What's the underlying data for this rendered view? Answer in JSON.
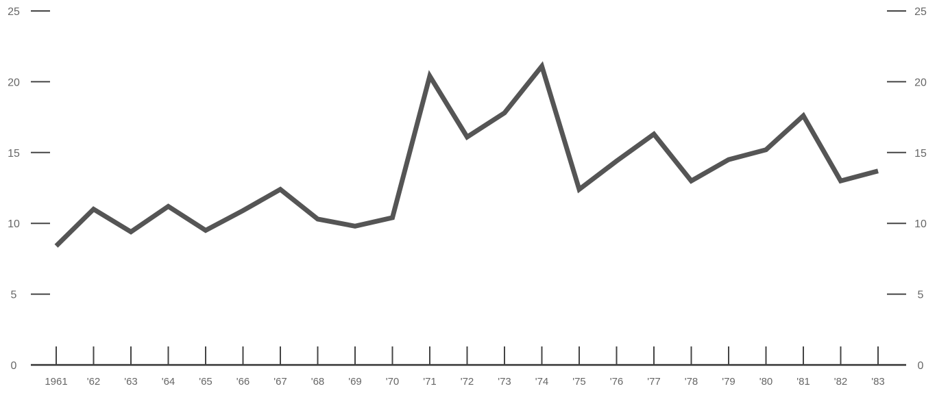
{
  "chart_data": {
    "type": "line",
    "title": "",
    "xlabel": "",
    "ylabel": "",
    "categories": [
      "1961",
      "'62",
      "'63",
      "'64",
      "'65",
      "'66",
      "'67",
      "'68",
      "'69",
      "'70",
      "'71",
      "'72",
      "'73",
      "'74",
      "'75",
      "'76",
      "'77",
      "'78",
      "'79",
      "'80",
      "'81",
      "'82",
      "'83"
    ],
    "series": [
      {
        "values": [
          8.4,
          11.0,
          9.4,
          11.2,
          9.5,
          10.9,
          12.4,
          10.3,
          9.8,
          10.4,
          20.4,
          16.1,
          17.8,
          21.1,
          12.4,
          14.4,
          16.3,
          13.0,
          14.5,
          15.2,
          17.6,
          13.0,
          13.7
        ]
      }
    ],
    "ylim": [
      0,
      25
    ],
    "yticks_left": [
      0,
      5,
      10,
      15,
      20,
      25
    ],
    "yticks_right": [
      0,
      5,
      10,
      15,
      20,
      25
    ],
    "grid": false,
    "legend": "none",
    "colors": {
      "line": "#555555",
      "axis": "#333333",
      "tick": "#444444",
      "label": "#666666"
    }
  }
}
